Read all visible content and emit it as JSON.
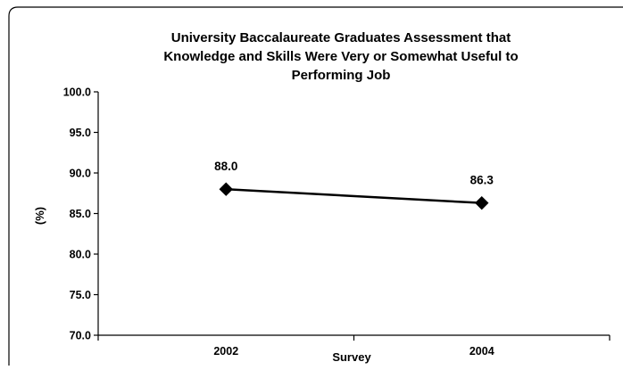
{
  "chart_data": {
    "type": "line",
    "title": "University Baccalaureate Graduates Assessment that Knowledge and Skills Were Very or Somewhat Useful to Performing Job",
    "title_lines": [
      "University Baccalaureate Graduates Assessment that",
      "Knowledge and Skills Were Very or Somewhat Useful to",
      "Performing Job"
    ],
    "xlabel": "Survey",
    "ylabel": "(%)",
    "categories": [
      "2002",
      "2004"
    ],
    "series": [
      {
        "values": [
          88.0,
          86.3
        ],
        "labels": [
          "88.0",
          "86.3"
        ]
      }
    ],
    "ylim": [
      70.0,
      100.0
    ],
    "yticks": [
      "70.0",
      "75.0",
      "80.0",
      "85.0",
      "90.0",
      "95.0",
      "100.0"
    ],
    "grid": false,
    "legend": "none",
    "marker": "diamond",
    "line_color": "#000000"
  }
}
